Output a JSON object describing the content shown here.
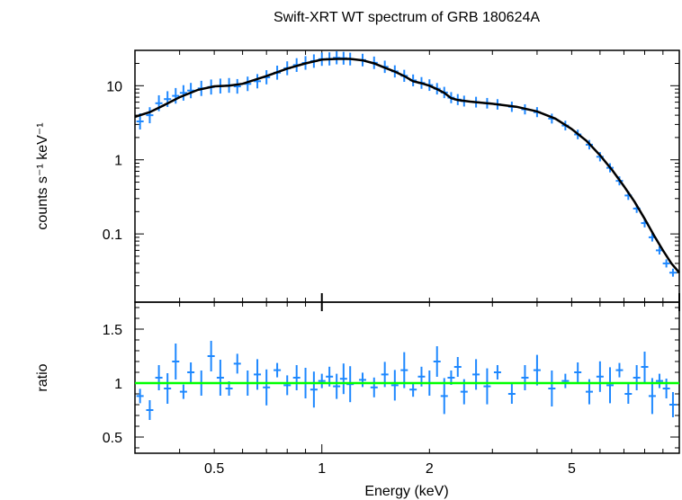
{
  "chart_data": [
    {
      "type": "scatter",
      "panel": "spectrum",
      "title": "Swift-XRT WT spectrum of GRB 180624A",
      "xlabel": "Energy (keV)",
      "ylabel": "counts s⁻¹ keV⁻¹",
      "xscale": "log",
      "yscale": "log",
      "xlim": [
        0.3,
        10
      ],
      "ylim": [
        0.012,
        30
      ],
      "y_ticks": [
        0.1,
        1,
        10
      ],
      "y_tick_labels": [
        "0.1",
        "1",
        "10"
      ],
      "grid": false,
      "legend": "none",
      "colors": {
        "data": "#1e88ff",
        "model": "#000000"
      },
      "series": [
        {
          "kind": "model",
          "x": [
            0.3,
            0.33,
            0.36,
            0.4,
            0.45,
            0.5,
            0.55,
            0.6,
            0.7,
            0.8,
            0.9,
            1.0,
            1.1,
            1.2,
            1.3,
            1.4,
            1.5,
            1.6,
            1.7,
            1.8,
            1.9,
            2.0,
            2.1,
            2.2,
            2.3,
            2.4,
            2.6,
            2.8,
            3.0,
            3.5,
            4.0,
            4.5,
            5.0,
            5.5,
            6.0,
            6.5,
            7.0,
            7.5,
            8.0,
            8.5,
            9.0,
            9.5,
            10.0
          ],
          "y": [
            3.8,
            4.4,
            5.4,
            7.0,
            8.8,
            9.8,
            10.0,
            10.6,
            13.5,
            17.0,
            20.0,
            22.5,
            23.0,
            23.0,
            22.0,
            20.0,
            17.5,
            15.5,
            13.5,
            11.5,
            10.8,
            10.0,
            9.0,
            8.0,
            6.8,
            6.4,
            6.1,
            5.9,
            5.7,
            5.2,
            4.5,
            3.6,
            2.6,
            1.8,
            1.15,
            0.72,
            0.44,
            0.27,
            0.16,
            0.095,
            0.06,
            0.04,
            0.03
          ]
        },
        {
          "kind": "data",
          "x": [
            0.31,
            0.33,
            0.35,
            0.37,
            0.39,
            0.41,
            0.43,
            0.46,
            0.49,
            0.52,
            0.55,
            0.58,
            0.62,
            0.66,
            0.7,
            0.75,
            0.8,
            0.85,
            0.9,
            0.95,
            1.0,
            1.05,
            1.1,
            1.15,
            1.2,
            1.3,
            1.4,
            1.5,
            1.6,
            1.7,
            1.8,
            1.9,
            2.0,
            2.1,
            2.2,
            2.3,
            2.4,
            2.5,
            2.7,
            2.9,
            3.1,
            3.4,
            3.7,
            4.0,
            4.4,
            4.8,
            5.2,
            5.6,
            6.0,
            6.4,
            6.8,
            7.2,
            7.6,
            8.0,
            8.4,
            8.8,
            9.2,
            9.6
          ],
          "y": [
            3.3,
            4.0,
            5.8,
            6.6,
            7.3,
            8.0,
            8.6,
            9.2,
            9.6,
            9.9,
            10.1,
            9.8,
            10.6,
            11.5,
            13.0,
            15.0,
            17.2,
            19.0,
            20.3,
            21.5,
            22.8,
            23.0,
            23.8,
            23.5,
            22.9,
            22.2,
            20.4,
            18.0,
            15.6,
            13.6,
            11.8,
            10.9,
            10.2,
            9.1,
            8.1,
            6.9,
            6.5,
            6.2,
            6.0,
            5.8,
            5.6,
            5.2,
            4.8,
            4.4,
            3.6,
            2.9,
            2.2,
            1.6,
            1.1,
            0.78,
            0.52,
            0.33,
            0.22,
            0.14,
            0.09,
            0.06,
            0.04,
            0.03
          ]
        }
      ]
    },
    {
      "type": "scatter",
      "panel": "ratio",
      "xlabel": "Energy (keV)",
      "ylabel": "ratio",
      "xscale": "log",
      "yscale": "linear",
      "xlim": [
        0.3,
        10
      ],
      "ylim": [
        0.35,
        1.75
      ],
      "x_ticks": [
        0.5,
        1,
        2,
        5
      ],
      "x_tick_labels": [
        "0.5",
        "1",
        "2",
        "5"
      ],
      "y_ticks": [
        0.5,
        1,
        1.5
      ],
      "y_tick_labels": [
        "0.5",
        "1",
        "1.5"
      ],
      "reference_line": 1,
      "grid": false,
      "legend": "none",
      "colors": {
        "data": "#1e88ff",
        "reference": "#00ff00"
      },
      "series": [
        {
          "kind": "data",
          "x": [
            0.31,
            0.33,
            0.35,
            0.37,
            0.39,
            0.41,
            0.43,
            0.46,
            0.49,
            0.52,
            0.55,
            0.58,
            0.62,
            0.66,
            0.7,
            0.75,
            0.8,
            0.85,
            0.9,
            0.95,
            1.0,
            1.05,
            1.1,
            1.15,
            1.2,
            1.3,
            1.4,
            1.5,
            1.6,
            1.7,
            1.8,
            1.9,
            2.0,
            2.1,
            2.2,
            2.3,
            2.4,
            2.5,
            2.7,
            2.9,
            3.1,
            3.4,
            3.7,
            4.0,
            4.4,
            4.8,
            5.2,
            5.6,
            6.0,
            6.4,
            6.8,
            7.2,
            7.6,
            8.0,
            8.4,
            8.8,
            9.2,
            9.6
          ],
          "y": [
            0.88,
            0.75,
            1.05,
            0.95,
            1.2,
            0.92,
            1.1,
            1.0,
            1.25,
            1.05,
            0.95,
            1.18,
            1.0,
            1.08,
            0.96,
            1.12,
            0.98,
            1.05,
            1.0,
            0.94,
            1.02,
            1.06,
            0.97,
            1.04,
            0.99,
            1.03,
            0.96,
            1.08,
            0.98,
            1.12,
            0.94,
            1.06,
            1.0,
            1.2,
            0.88,
            1.05,
            1.15,
            0.92,
            1.08,
            0.97,
            1.1,
            0.9,
            1.05,
            1.12,
            0.95,
            1.02,
            1.1,
            0.92,
            1.06,
            0.98,
            1.12,
            0.9,
            1.05,
            1.15,
            0.88,
            1.02,
            0.95,
            0.8
          ]
        }
      ]
    }
  ]
}
